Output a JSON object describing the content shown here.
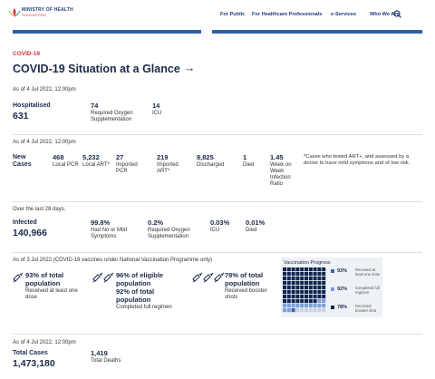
{
  "header": {
    "logo": {
      "title": "MINISTRY OF HEALTH",
      "subtitle": "SINGAPORE"
    },
    "nav": [
      "For Public",
      "For Healthcare Professionals",
      "e-Services",
      "Who We Are"
    ]
  },
  "section": {
    "tag": "COVID-19",
    "title": "COVID-19 Situation at a Glance",
    "arrow": "→"
  },
  "hospital": {
    "date": "As of 4 Jul 2022, 12:00pm",
    "headline": {
      "label": "Hospitalised",
      "value": "631"
    },
    "stats": [
      {
        "value": "74",
        "label": "Required Oxygen Supplementation"
      },
      {
        "value": "14",
        "label": "ICU"
      }
    ]
  },
  "new_cases": {
    "date": "As of 4 Jul 2022, 12:00pm",
    "headline": {
      "label": "New Cases"
    },
    "stats": [
      {
        "value": "468",
        "label": "Local PCR"
      },
      {
        "value": "5,232",
        "label": "Local ART*"
      },
      {
        "value": "27",
        "label": "Imported PCR"
      },
      {
        "value": "219",
        "label": "Imported ART*"
      },
      {
        "value": "8,825",
        "label": "Discharged"
      },
      {
        "value": "1",
        "label": "Died"
      },
      {
        "value": "1.45",
        "label": "Week on Week Infection Ratio"
      }
    ],
    "note": "*Cases who tested ART+, and assessed by a doctor to have mild symptoms and of low risk."
  },
  "infected": {
    "date": "Over the last 28 days.",
    "headline": {
      "label": "Infected",
      "value": "140,966"
    },
    "stats": [
      {
        "value": "99.8%",
        "label": "Had No or Mild Symptoms"
      },
      {
        "value": "0.2%",
        "label": "Required Oxygen Supplementation"
      },
      {
        "value": "0.03%",
        "label": "ICU"
      },
      {
        "value": "0.01%",
        "label": "Died"
      }
    ]
  },
  "vaccination": {
    "date": "As of 3 Jul 2022 (COVID-19 vaccines under National Vaccination Programme only)",
    "items": [
      {
        "lines": [
          "93% of total population"
        ],
        "label": "Received at least one dose"
      },
      {
        "lines": [
          "96% of eligible population",
          "92% of total population"
        ],
        "label": "Completed full regimen"
      },
      {
        "lines": [
          "78% of total population"
        ],
        "label": "Received booster shots"
      }
    ],
    "progress": {
      "title": "Vaccination Progress",
      "legend": [
        {
          "value": "93%",
          "label": "Received at least one dose"
        },
        {
          "value": "92%",
          "label": "Completed full regimen"
        },
        {
          "value": "78%",
          "label": "Received booster shot"
        }
      ]
    }
  },
  "totals": {
    "date": "As of 4 Jul 2022, 12:00pm",
    "headline": {
      "label": "Total Cases",
      "value": "1,473,180"
    },
    "stats": [
      {
        "value": "1,419",
        "label": "Total Deaths"
      }
    ]
  }
}
